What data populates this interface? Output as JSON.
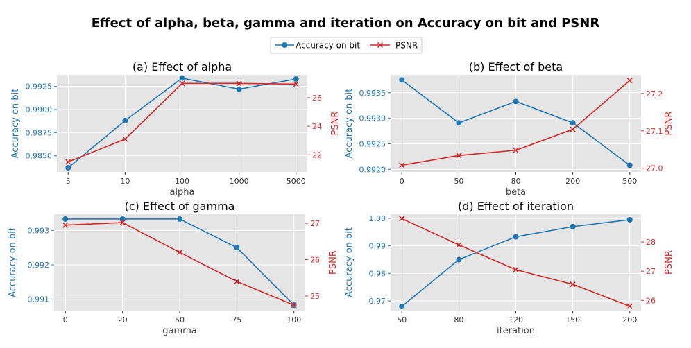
{
  "figure": {
    "title": "Effect of alpha, beta, gamma and iteration on Accuracy on bit and PSNR",
    "legend": [
      {
        "label": "Accuracy on bit",
        "color": "#1f77b4",
        "marker": "circle"
      },
      {
        "label": "PSNR",
        "color": "#d62728",
        "marker": "x"
      }
    ]
  },
  "colors": {
    "accuracy": "#1f77b4",
    "psnr": "#d62728",
    "plot_bg": "#e5e5e5",
    "grid": "#ffffff"
  },
  "chart_data": [
    {
      "type": "line",
      "title": "(a) Effect of alpha",
      "xlabel": "alpha",
      "ylabel_left": "Accuracy on bit",
      "ylabel_right": "PSNR",
      "categories": [
        "5",
        "10",
        "100",
        "1000",
        "5000"
      ],
      "left_ylim": [
        0.98325,
        0.99375
      ],
      "left_ticks": [
        0.985,
        0.9875,
        0.99,
        0.9925
      ],
      "left_tick_labels": [
        "0.9850",
        "0.9875",
        "0.9900",
        "0.9925"
      ],
      "right_ylim": [
        20.8,
        27.6
      ],
      "right_ticks": [
        22,
        24,
        26
      ],
      "right_tick_labels": [
        "22",
        "24",
        "26"
      ],
      "series": [
        {
          "name": "Accuracy on bit",
          "axis": "left",
          "values": [
            0.9837,
            0.9888,
            0.9934,
            0.9922,
            0.9933
          ]
        },
        {
          "name": "PSNR",
          "axis": "right",
          "values": [
            21.5,
            23.1,
            27.0,
            27.0,
            26.95
          ]
        }
      ]
    },
    {
      "type": "line",
      "title": "(b) Effect of beta",
      "xlabel": "beta",
      "ylabel_left": "Accuracy on bit",
      "ylabel_right": "PSNR",
      "categories": [
        "0",
        "50",
        "80",
        "200",
        "500"
      ],
      "left_ylim": [
        0.99195,
        0.99385
      ],
      "left_ticks": [
        0.992,
        0.9925,
        0.993,
        0.9935
      ],
      "left_tick_labels": [
        "0.9920",
        "0.9925",
        "0.9930",
        "0.9935"
      ],
      "right_ylim": [
        26.99,
        27.25
      ],
      "right_ticks": [
        27.0,
        27.1,
        27.2
      ],
      "right_tick_labels": [
        "27.0",
        "27.1",
        "27.2"
      ],
      "series": [
        {
          "name": "Accuracy on bit",
          "axis": "left",
          "values": [
            0.99375,
            0.99291,
            0.99333,
            0.99291,
            0.99208
          ]
        },
        {
          "name": "PSNR",
          "axis": "right",
          "values": [
            27.008,
            27.034,
            27.048,
            27.104,
            27.235
          ]
        }
      ]
    },
    {
      "type": "line",
      "title": "(c) Effect of gamma",
      "xlabel": "gamma",
      "ylabel_left": "Accuracy on bit",
      "ylabel_right": "PSNR",
      "categories": [
        "0",
        "20",
        "50",
        "75",
        "100"
      ],
      "left_ylim": [
        0.99067,
        0.99347
      ],
      "left_ticks": [
        0.991,
        0.992,
        0.993
      ],
      "left_tick_labels": [
        "0.991",
        "0.992",
        "0.993"
      ],
      "right_ylim": [
        24.6,
        27.25
      ],
      "right_ticks": [
        25,
        26,
        27
      ],
      "right_tick_labels": [
        "25",
        "26",
        "27"
      ],
      "series": [
        {
          "name": "Accuracy on bit",
          "axis": "left",
          "values": [
            0.99333,
            0.99333,
            0.99333,
            0.9925,
            0.99083
          ]
        },
        {
          "name": "PSNR",
          "axis": "right",
          "values": [
            26.95,
            27.02,
            26.2,
            25.4,
            24.75
          ]
        }
      ]
    },
    {
      "type": "line",
      "title": "(d) Effect of iteration",
      "xlabel": "iteration",
      "ylabel_left": "Accuracy on bit",
      "ylabel_right": "PSNR",
      "categories": [
        "50",
        "80",
        "120",
        "150",
        "200"
      ],
      "left_ylim": [
        0.9665,
        1.0015
      ],
      "left_ticks": [
        0.97,
        0.98,
        0.99,
        1.0
      ],
      "left_tick_labels": [
        "0.97",
        "0.98",
        "0.99",
        "1.00"
      ],
      "right_ylim": [
        25.65,
        28.95
      ],
      "right_ticks": [
        26,
        27,
        28
      ],
      "right_tick_labels": [
        "26",
        "27",
        "28"
      ],
      "series": [
        {
          "name": "Accuracy on bit",
          "axis": "left",
          "values": [
            0.968,
            0.985,
            0.9933,
            0.997,
            0.9995
          ]
        },
        {
          "name": "PSNR",
          "axis": "right",
          "values": [
            28.8,
            27.9,
            27.05,
            26.55,
            25.8
          ]
        }
      ]
    }
  ]
}
